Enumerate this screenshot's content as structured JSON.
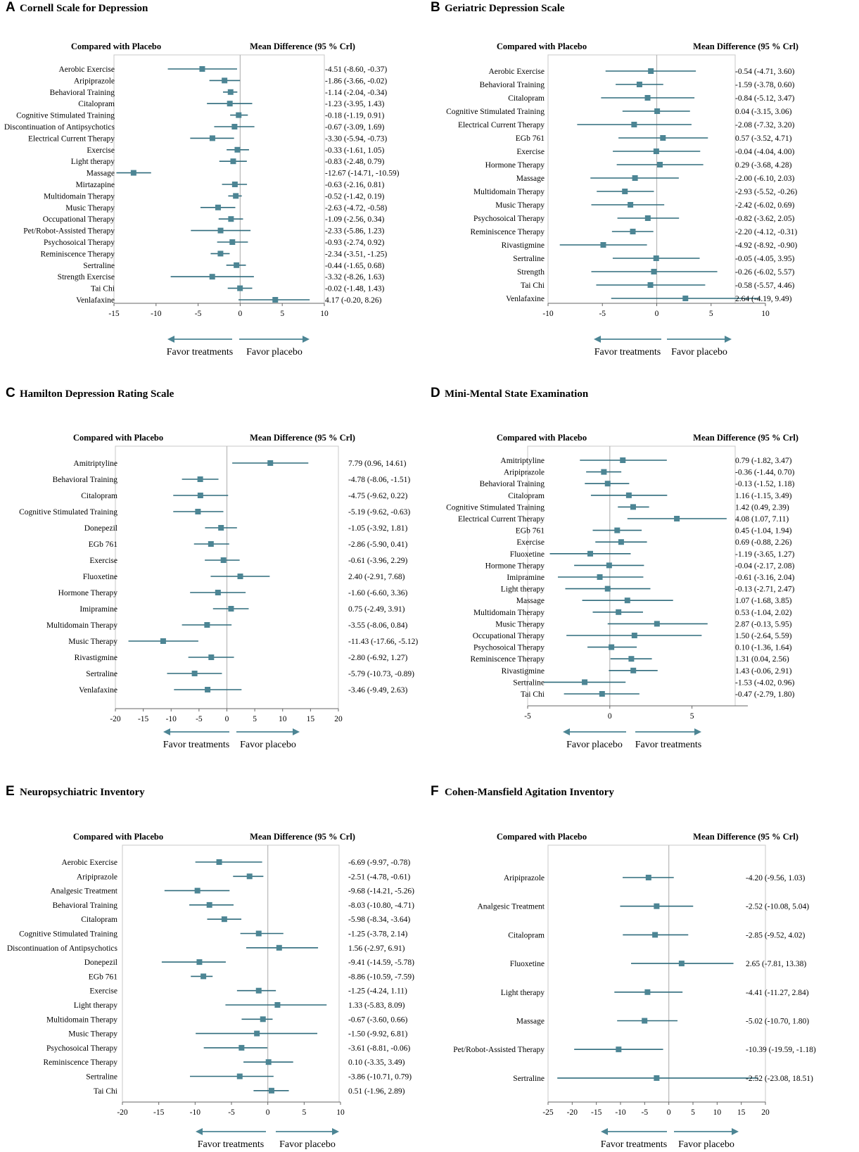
{
  "chart_data": [
    {
      "type": "forest",
      "letter": "A",
      "title": "Cornell Scale for Depression",
      "left_header": "Compared with Placebo",
      "right_header": "Mean Difference (95 % Crl)",
      "xlim": [
        -15,
        10
      ],
      "ticks": [
        "-15",
        "-10",
        "-5",
        "0",
        "5",
        "10"
      ],
      "favor_left": "Favor treatments",
      "favor_right": "Favor placebo",
      "rows": [
        {
          "label": "Aerobic Exercise",
          "mean": -4.51,
          "lo": -8.6,
          "hi": -0.37,
          "text": "-4.51 (-8.60, -0.37)"
        },
        {
          "label": "Aripiprazole",
          "mean": -1.86,
          "lo": -3.66,
          "hi": -0.02,
          "text": "-1.86 (-3.66, -0.02)"
        },
        {
          "label": "Behavioral Training",
          "mean": -1.14,
          "lo": -2.04,
          "hi": -0.34,
          "text": "-1.14 (-2.04, -0.34)"
        },
        {
          "label": "Citalopram",
          "mean": -1.23,
          "lo": -3.95,
          "hi": 1.43,
          "text": "-1.23 (-3.95, 1.43)"
        },
        {
          "label": "Cognitive Stimulated Training",
          "mean": -0.18,
          "lo": -1.19,
          "hi": 0.91,
          "text": "-0.18 (-1.19, 0.91)"
        },
        {
          "label": "Discontinuation of Antipsychotics",
          "mean": -0.67,
          "lo": -3.09,
          "hi": 1.69,
          "text": "-0.67 (-3.09, 1.69)"
        },
        {
          "label": "Electrical Current Therapy",
          "mean": -3.3,
          "lo": -5.94,
          "hi": -0.73,
          "text": "-3.30 (-5.94, -0.73)"
        },
        {
          "label": "Exercise",
          "mean": -0.33,
          "lo": -1.61,
          "hi": 1.05,
          "text": "-0.33 (-1.61, 1.05)"
        },
        {
          "label": "Light therapy",
          "mean": -0.83,
          "lo": -2.48,
          "hi": 0.79,
          "text": "-0.83 (-2.48, 0.79)"
        },
        {
          "label": "Massage",
          "mean": -12.67,
          "lo": -14.71,
          "hi": -10.59,
          "text": "-12.67 (-14.71, -10.59)"
        },
        {
          "label": "Mirtazapine",
          "mean": -0.63,
          "lo": -2.16,
          "hi": 0.81,
          "text": "-0.63 (-2.16, 0.81)"
        },
        {
          "label": "Multidomain Therapy",
          "mean": -0.52,
          "lo": -1.42,
          "hi": 0.19,
          "text": "-0.52 (-1.42, 0.19)"
        },
        {
          "label": "Music Therapy",
          "mean": -2.63,
          "lo": -4.72,
          "hi": -0.58,
          "text": "-2.63 (-4.72, -0.58)"
        },
        {
          "label": "Occupational Therapy",
          "mean": -1.09,
          "lo": -2.56,
          "hi": 0.34,
          "text": "-1.09 (-2.56, 0.34)"
        },
        {
          "label": "Pet/Robot-Assisted Therapy",
          "mean": -2.33,
          "lo": -5.86,
          "hi": 1.23,
          "text": "-2.33 (-5.86, 1.23)"
        },
        {
          "label": "Psychosoical Therapy",
          "mean": -0.93,
          "lo": -2.74,
          "hi": 0.92,
          "text": "-0.93 (-2.74, 0.92)"
        },
        {
          "label": "Reminiscence Therapy",
          "mean": -2.34,
          "lo": -3.51,
          "hi": -1.25,
          "text": "-2.34 (-3.51, -1.25)"
        },
        {
          "label": "Sertraline",
          "mean": -0.44,
          "lo": -1.65,
          "hi": 0.68,
          "text": "-0.44 (-1.65, 0.68)"
        },
        {
          "label": "Strength Exercise",
          "mean": -3.32,
          "lo": -8.26,
          "hi": 1.63,
          "text": "-3.32 (-8.26, 1.63)"
        },
        {
          "label": "Tai Chi",
          "mean": -0.02,
          "lo": -1.48,
          "hi": 1.43,
          "text": "-0.02 (-1.48, 1.43)"
        },
        {
          "label": "Venlafaxine",
          "mean": 4.17,
          "lo": -0.2,
          "hi": 8.26,
          "text": "4.17 (-0.20, 8.26)"
        }
      ]
    },
    {
      "type": "forest",
      "letter": "B",
      "title": "Geriatric Depression Scale",
      "left_header": "Compared with Placebo",
      "right_header": "Mean Difference (95 % Crl)",
      "xlim": [
        -10,
        10
      ],
      "ticks": [
        "-10",
        "-5",
        "0",
        "5",
        "10"
      ],
      "favor_left": "Favor treatments",
      "favor_right": "Favor placebo",
      "rows": [
        {
          "label": "Aerobic Exercise",
          "mean": -0.54,
          "lo": -4.71,
          "hi": 3.6,
          "text": "-0.54 (-4.71, 3.60)"
        },
        {
          "label": "Behavioral Training",
          "mean": -1.59,
          "lo": -3.78,
          "hi": 0.6,
          "text": "-1.59 (-3.78, 0.60)"
        },
        {
          "label": "Citalopram",
          "mean": -0.84,
          "lo": -5.12,
          "hi": 3.47,
          "text": "-0.84 (-5.12, 3.47)"
        },
        {
          "label": "Cognitive Stimulated Training",
          "mean": 0.04,
          "lo": -3.15,
          "hi": 3.06,
          "text": "0.04 (-3.15, 3.06)"
        },
        {
          "label": "Electrical Current Therapy",
          "mean": -2.08,
          "lo": -7.32,
          "hi": 3.2,
          "text": "-2.08 (-7.32, 3.20)"
        },
        {
          "label": "EGb 761",
          "mean": 0.57,
          "lo": -3.52,
          "hi": 4.71,
          "text": "0.57 (-3.52, 4.71)"
        },
        {
          "label": "Exercise",
          "mean": -0.04,
          "lo": -4.04,
          "hi": 4.0,
          "text": "-0.04 (-4.04, 4.00)"
        },
        {
          "label": "Hormone Therapy",
          "mean": 0.29,
          "lo": -3.68,
          "hi": 4.28,
          "text": "0.29 (-3.68, 4.28)"
        },
        {
          "label": "Massage",
          "mean": -2.0,
          "lo": -6.1,
          "hi": 2.03,
          "text": "-2.00 (-6.10, 2.03)"
        },
        {
          "label": "Multidomain Therapy",
          "mean": -2.93,
          "lo": -5.52,
          "hi": -0.26,
          "text": "-2.93 (-5.52, -0.26)"
        },
        {
          "label": "Music Therapy",
          "mean": -2.42,
          "lo": -6.02,
          "hi": 0.69,
          "text": "-2.42 (-6.02, 0.69)"
        },
        {
          "label": "Psychosoical Therapy",
          "mean": -0.82,
          "lo": -3.62,
          "hi": 2.05,
          "text": "-0.82 (-3.62, 2.05)"
        },
        {
          "label": "Reminiscence Therapy",
          "mean": -2.2,
          "lo": -4.12,
          "hi": -0.31,
          "text": "-2.20 (-4.12, -0.31)"
        },
        {
          "label": "Rivastigmine",
          "mean": -4.92,
          "lo": -8.92,
          "hi": -0.9,
          "text": "-4.92 (-8.92, -0.90)"
        },
        {
          "label": "Sertraline",
          "mean": -0.05,
          "lo": -4.05,
          "hi": 3.95,
          "text": "-0.05 (-4.05, 3.95)"
        },
        {
          "label": "Strength",
          "mean": -0.26,
          "lo": -6.02,
          "hi": 5.57,
          "text": "-0.26 (-6.02, 5.57)"
        },
        {
          "label": "Tai Chi",
          "mean": -0.58,
          "lo": -5.57,
          "hi": 4.46,
          "text": "-0.58 (-5.57, 4.46)"
        },
        {
          "label": "Venlafaxine",
          "mean": 2.64,
          "lo": -4.19,
          "hi": 9.49,
          "text": "2.64 (-4.19, 9.49)"
        }
      ]
    },
    {
      "type": "forest",
      "letter": "C",
      "title": "Hamilton Depression Rating Scale",
      "left_header": "Compared with Placebo",
      "right_header": "Mean Difference (95 % Crl)",
      "xlim": [
        -20,
        20
      ],
      "ticks": [
        "-20",
        "-15",
        "-10",
        "-5",
        "0",
        "5",
        "10",
        "15",
        "20"
      ],
      "favor_left": "Favor treatments",
      "favor_right": "Favor placebo",
      "rows": [
        {
          "label": "Amitriptyline",
          "mean": 7.79,
          "lo": 0.96,
          "hi": 14.61,
          "text": "7.79 (0.96, 14.61)"
        },
        {
          "label": "Behavioral Training",
          "mean": -4.78,
          "lo": -8.06,
          "hi": -1.51,
          "text": "-4.78 (-8.06, -1.51)"
        },
        {
          "label": "Citalopram",
          "mean": -4.75,
          "lo": -9.62,
          "hi": 0.22,
          "text": "-4.75 (-9.62, 0.22)"
        },
        {
          "label": "Cognitive Stimulated Training",
          "mean": -5.19,
          "lo": -9.62,
          "hi": -0.63,
          "text": "-5.19 (-9.62, -0.63)"
        },
        {
          "label": "Donepezil",
          "mean": -1.05,
          "lo": -3.92,
          "hi": 1.81,
          "text": "-1.05 (-3.92, 1.81)"
        },
        {
          "label": "EGb 761",
          "mean": -2.86,
          "lo": -5.9,
          "hi": 0.41,
          "text": "-2.86 (-5.90, 0.41)"
        },
        {
          "label": "Exercise",
          "mean": -0.61,
          "lo": -3.96,
          "hi": 2.29,
          "text": "-0.61 (-3.96, 2.29)"
        },
        {
          "label": "Fluoxetine",
          "mean": 2.4,
          "lo": -2.91,
          "hi": 7.68,
          "text": "2.40 (-2.91, 7.68)"
        },
        {
          "label": "Hormone Therapy",
          "mean": -1.6,
          "lo": -6.6,
          "hi": 3.36,
          "text": "-1.60 (-6.60, 3.36)"
        },
        {
          "label": "Imipramine",
          "mean": 0.75,
          "lo": -2.49,
          "hi": 3.91,
          "text": "0.75 (-2.49, 3.91)"
        },
        {
          "label": "Multidomain Therapy",
          "mean": -3.55,
          "lo": -8.06,
          "hi": 0.84,
          "text": "-3.55 (-8.06, 0.84)"
        },
        {
          "label": "Music Therapy",
          "mean": -11.43,
          "lo": -17.66,
          "hi": -5.12,
          "text": "-11.43 (-17.66, -5.12)"
        },
        {
          "label": "Rivastigmine",
          "mean": -2.8,
          "lo": -6.92,
          "hi": 1.27,
          "text": "-2.80 (-6.92, 1.27)"
        },
        {
          "label": "Sertraline",
          "mean": -5.79,
          "lo": -10.73,
          "hi": -0.89,
          "text": "-5.79 (-10.73, -0.89)"
        },
        {
          "label": "Venlafaxine",
          "mean": -3.46,
          "lo": -9.49,
          "hi": 2.63,
          "text": "-3.46 (-9.49, 2.63)"
        }
      ]
    },
    {
      "type": "forest",
      "letter": "D",
      "title": "Mini-Mental State Examination",
      "left_header": "Compared with Placebo",
      "right_header": "Mean Difference (95 % Crl)",
      "xlim": [
        -5,
        8.4
      ],
      "ticks": [
        "-5",
        "0",
        "5"
      ],
      "tick_values": [
        -5,
        0,
        5
      ],
      "favor_left": "Favor placebo",
      "favor_right": "Favor treatments",
      "rows": [
        {
          "label": "Amitriptyline",
          "mean": 0.79,
          "lo": -1.82,
          "hi": 3.47,
          "text": "0.79 (-1.82, 3.47)"
        },
        {
          "label": "Aripiprazole",
          "mean": -0.36,
          "lo": -1.44,
          "hi": 0.7,
          "text": "-0.36 (-1.44, 0.70)"
        },
        {
          "label": "Behavioral Training",
          "mean": -0.13,
          "lo": -1.52,
          "hi": 1.18,
          "text": "-0.13 (-1.52, 1.18)"
        },
        {
          "label": "Citalopram",
          "mean": 1.16,
          "lo": -1.15,
          "hi": 3.49,
          "text": "1.16 (-1.15, 3.49)"
        },
        {
          "label": "Cognitive Stimulated Training",
          "mean": 1.42,
          "lo": 0.49,
          "hi": 2.39,
          "text": "1.42 (0.49, 2.39)"
        },
        {
          "label": "Electrical Current Therapy",
          "mean": 4.08,
          "lo": 1.07,
          "hi": 7.11,
          "text": "4.08 (1.07, 7.11)"
        },
        {
          "label": "EGb 761",
          "mean": 0.45,
          "lo": -1.04,
          "hi": 1.94,
          "text": "0.45 (-1.04, 1.94)"
        },
        {
          "label": "Exercise",
          "mean": 0.69,
          "lo": -0.88,
          "hi": 2.26,
          "text": "0.69 (-0.88, 2.26)"
        },
        {
          "label": "Fluoxetine",
          "mean": -1.19,
          "lo": -3.65,
          "hi": 1.27,
          "text": "-1.19 (-3.65, 1.27)"
        },
        {
          "label": "Hormone Therapy",
          "mean": -0.04,
          "lo": -2.17,
          "hi": 2.08,
          "text": "-0.04 (-2.17, 2.08)"
        },
        {
          "label": "Imipramine",
          "mean": -0.61,
          "lo": -3.16,
          "hi": 2.04,
          "text": "-0.61 (-3.16, 2.04)"
        },
        {
          "label": "Light therapy",
          "mean": -0.13,
          "lo": -2.71,
          "hi": 2.47,
          "text": "-0.13 (-2.71, 2.47)"
        },
        {
          "label": "Massage",
          "mean": 1.07,
          "lo": -1.68,
          "hi": 3.85,
          "text": "1.07 (-1.68, 3.85)"
        },
        {
          "label": "Multidomain Therapy",
          "mean": 0.53,
          "lo": -1.04,
          "hi": 2.02,
          "text": "0.53 (-1.04, 2.02)"
        },
        {
          "label": "Music Therapy",
          "mean": 2.87,
          "lo": -0.13,
          "hi": 5.95,
          "text": "2.87 (-0.13, 5.95)"
        },
        {
          "label": "Occupational Therapy",
          "mean": 1.5,
          "lo": -2.64,
          "hi": 5.59,
          "text": "1.50 (-2.64, 5.59)"
        },
        {
          "label": "Psychosoical Therapy",
          "mean": 0.1,
          "lo": -1.36,
          "hi": 1.64,
          "text": "0.10 (-1.36, 1.64)"
        },
        {
          "label": "Reminiscence Therapy",
          "mean": 1.31,
          "lo": 0.04,
          "hi": 2.56,
          "text": "1.31 (0.04, 2.56)"
        },
        {
          "label": "Rivastigmine",
          "mean": 1.43,
          "lo": -0.06,
          "hi": 2.91,
          "text": "1.43 (-0.06, 2.91)"
        },
        {
          "label": "Sertraline",
          "mean": -1.53,
          "lo": -4.02,
          "hi": 0.96,
          "text": "-1.53 (-4.02, 0.96)"
        },
        {
          "label": "Tai Chi",
          "mean": -0.47,
          "lo": -2.79,
          "hi": 1.8,
          "text": "-0.47 (-2.79, 1.80)"
        }
      ]
    },
    {
      "type": "forest",
      "letter": "E",
      "title": "Neuropsychiatric Inventory",
      "left_header": "Compared with Placebo",
      "right_header": "Mean Difference (95 % Crl)",
      "xlim": [
        -20,
        10
      ],
      "ticks": [
        "-20",
        "-15",
        "-10",
        "-5",
        "0",
        "5",
        "10"
      ],
      "favor_left": "Favor treatments",
      "favor_right": "Favor placebo",
      "rows": [
        {
          "label": "Aerobic Exercise",
          "mean": -6.69,
          "lo": -9.97,
          "hi": -0.78,
          "text": "-6.69 (-9.97, -0.78)"
        },
        {
          "label": "Aripiprazole",
          "mean": -2.51,
          "lo": -4.78,
          "hi": -0.61,
          "text": "-2.51 (-4.78, -0.61)"
        },
        {
          "label": "Analgesic Treatment",
          "mean": -9.68,
          "lo": -14.21,
          "hi": -5.26,
          "text": "-9.68 (-14.21, -5.26)"
        },
        {
          "label": "Behavioral Training",
          "mean": -8.03,
          "lo": -10.8,
          "hi": -4.71,
          "text": "-8.03 (-10.80, -4.71)"
        },
        {
          "label": "Citalopram",
          "mean": -5.98,
          "lo": -8.34,
          "hi": -3.64,
          "text": "-5.98 (-8.34, -3.64)"
        },
        {
          "label": "Cognitive Stimulated Training",
          "mean": -1.25,
          "lo": -3.78,
          "hi": 2.14,
          "text": "-1.25 (-3.78, 2.14)"
        },
        {
          "label": "Discontinuation of Antipsychotics",
          "mean": 1.56,
          "lo": -2.97,
          "hi": 6.91,
          "text": "1.56 (-2.97, 6.91)"
        },
        {
          "label": "Donepezil",
          "mean": -9.41,
          "lo": -14.59,
          "hi": -5.78,
          "text": "-9.41 (-14.59, -5.78)"
        },
        {
          "label": "EGb 761",
          "mean": -8.86,
          "lo": -10.59,
          "hi": -7.59,
          "text": "-8.86 (-10.59, -7.59)"
        },
        {
          "label": "Exercise",
          "mean": -1.25,
          "lo": -4.24,
          "hi": 1.11,
          "text": "-1.25 (-4.24, 1.11)"
        },
        {
          "label": "Light therapy",
          "mean": 1.33,
          "lo": -5.83,
          "hi": 8.09,
          "text": "1.33 (-5.83, 8.09)"
        },
        {
          "label": "Multidomain Therapy",
          "mean": -0.67,
          "lo": -3.6,
          "hi": 0.66,
          "text": "-0.67 (-3.60, 0.66)"
        },
        {
          "label": "Music Therapy",
          "mean": -1.5,
          "lo": -9.92,
          "hi": 6.81,
          "text": "-1.50 (-9.92, 6.81)"
        },
        {
          "label": "Psychosoical Therapy",
          "mean": -3.61,
          "lo": -8.81,
          "hi": -0.06,
          "text": "-3.61 (-8.81, -0.06)"
        },
        {
          "label": "Reminiscence Therapy",
          "mean": 0.1,
          "lo": -3.35,
          "hi": 3.49,
          "text": "0.10 (-3.35, 3.49)"
        },
        {
          "label": "Sertraline",
          "mean": -3.86,
          "lo": -10.71,
          "hi": 0.79,
          "text": "-3.86 (-10.71, 0.79)"
        },
        {
          "label": "Tai Chi",
          "mean": 0.51,
          "lo": -1.96,
          "hi": 2.89,
          "text": "0.51 (-1.96, 2.89)"
        }
      ]
    },
    {
      "type": "forest",
      "letter": "F",
      "title": "Cohen-Mansfield Agitation Inventory",
      "left_header": "Compared with Placebo",
      "right_header": "Mean Difference (95 % Crl)",
      "xlim": [
        -25,
        20
      ],
      "ticks": [
        "-25",
        "-20",
        "-15",
        "-10",
        "-5",
        "0",
        "5",
        "10",
        "15",
        "20"
      ],
      "favor_left": "Favor treatments",
      "favor_right": "Favor placebo",
      "rows": [
        {
          "label": "Aripiprazole",
          "mean": -4.2,
          "lo": -9.56,
          "hi": 1.03,
          "text": "-4.20 (-9.56, 1.03)"
        },
        {
          "label": "Analgesic Treatment",
          "mean": -2.52,
          "lo": -10.08,
          "hi": 5.04,
          "text": "-2.52 (-10.08, 5.04)"
        },
        {
          "label": "Citalopram",
          "mean": -2.85,
          "lo": -9.52,
          "hi": 4.02,
          "text": "-2.85 (-9.52, 4.02)"
        },
        {
          "label": "Fluoxetine",
          "mean": 2.65,
          "lo": -7.81,
          "hi": 13.38,
          "text": "2.65 (-7.81, 13.38)"
        },
        {
          "label": "Light therapy",
          "mean": -4.41,
          "lo": -11.27,
          "hi": 2.84,
          "text": "-4.41 (-11.27, 2.84)"
        },
        {
          "label": "Massage",
          "mean": -5.02,
          "lo": -10.7,
          "hi": 1.8,
          "text": "-5.02 (-10.70, 1.80)"
        },
        {
          "label": "Pet/Robot-Assisted Therapy",
          "mean": -10.39,
          "lo": -19.59,
          "hi": -1.18,
          "text": "-10.39 (-19.59, -1.18)"
        },
        {
          "label": "Sertraline",
          "mean": -2.52,
          "lo": -23.08,
          "hi": 18.51,
          "text": "-2.52 (-23.08, 18.51)"
        }
      ]
    }
  ]
}
